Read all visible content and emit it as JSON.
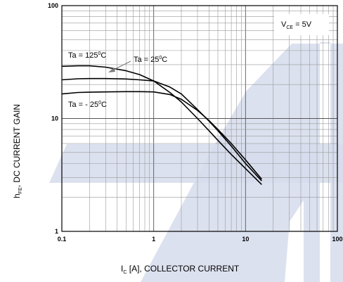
{
  "chart_data": {
    "type": "line",
    "x_scale": "log",
    "y_scale": "log",
    "xlim": [
      0.1,
      100
    ],
    "ylim": [
      1,
      100
    ],
    "grid": true,
    "x_ticks": [
      "0.1",
      "1",
      "10",
      "100"
    ],
    "y_ticks": [
      "1",
      "10",
      "100"
    ],
    "xlabel": {
      "main": "I",
      "sub": "C",
      "rest": " [A], COLLECTOR CURRENT"
    },
    "ylabel": {
      "main": "h",
      "sub": "FE",
      "rest": ", DC CURRENT GAIN"
    },
    "condition": {
      "main": "V",
      "sub": "CE",
      "rest": " = 5V"
    },
    "series": [
      {
        "name": "Ta = 125°C",
        "label": {
          "pre": "Ta = 125",
          "sup": "0",
          "post": "C"
        },
        "x": [
          0.1,
          0.15,
          0.2,
          0.3,
          0.5,
          0.7,
          1.0,
          1.5,
          2.0,
          3.0,
          4.0,
          5.0,
          7.0,
          10.0,
          15.0
        ],
        "y": [
          29,
          29.3,
          29.3,
          28.5,
          26.5,
          24.5,
          21.5,
          17,
          14,
          10,
          7.8,
          6.4,
          4.8,
          3.6,
          2.6
        ]
      },
      {
        "name": "Ta = 25°C",
        "label": {
          "pre": "Ta = 25",
          "sup": "0",
          "post": "C"
        },
        "x": [
          0.1,
          0.15,
          0.2,
          0.3,
          0.5,
          0.7,
          1.0,
          1.5,
          2.0,
          3.0,
          4.0,
          5.0,
          7.0,
          10.0,
          15.0
        ],
        "y": [
          22,
          22.5,
          22.6,
          22.6,
          22.4,
          22,
          21.5,
          19,
          16.5,
          12,
          9.5,
          7.8,
          5.7,
          4.0,
          2.8
        ]
      },
      {
        "name": "Ta = - 25°C",
        "label": {
          "pre": "Ta = - 25",
          "sup": "0",
          "post": "C"
        },
        "x": [
          0.1,
          0.15,
          0.2,
          0.3,
          0.5,
          0.7,
          1.0,
          1.5,
          2.0,
          3.0,
          4.0,
          5.0,
          7.0,
          10.0,
          15.0
        ],
        "y": [
          16.5,
          17,
          17.1,
          17.2,
          17.3,
          17.3,
          17.2,
          16.3,
          14.8,
          11.8,
          9.6,
          8.0,
          6.0,
          4.3,
          2.9
        ]
      }
    ]
  }
}
